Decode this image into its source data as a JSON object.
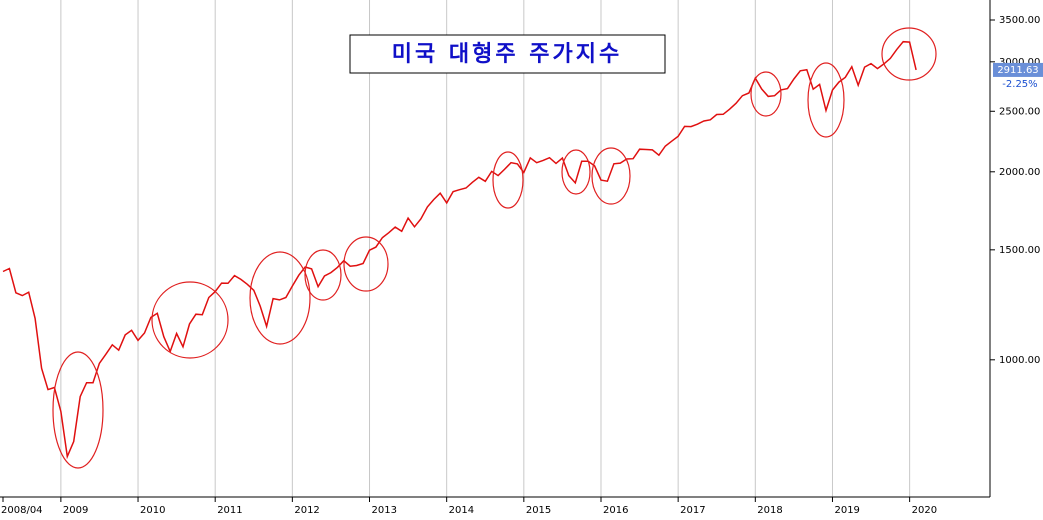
{
  "chart_data": {
    "type": "line",
    "title": "미국 대형주 주가지수",
    "categories": [
      "2008/04",
      null,
      null,
      null,
      null,
      null,
      null,
      null,
      null,
      "2009",
      null,
      null,
      null,
      null,
      null,
      null,
      null,
      null,
      null,
      null,
      null,
      "2010",
      null,
      null,
      null,
      null,
      null,
      null,
      null,
      null,
      null,
      null,
      null,
      "2011",
      null,
      null,
      null,
      null,
      null,
      null,
      null,
      null,
      null,
      null,
      null,
      "2012",
      null,
      null,
      null,
      null,
      null,
      null,
      null,
      null,
      null,
      null,
      null,
      "2013",
      null,
      null,
      null,
      null,
      null,
      null,
      null,
      null,
      null,
      null,
      null,
      "2014",
      null,
      null,
      null,
      null,
      null,
      null,
      null,
      null,
      null,
      null,
      null,
      "2015",
      null,
      null,
      null,
      null,
      null,
      null,
      null,
      null,
      null,
      null,
      null,
      "2016",
      null,
      null,
      null,
      null,
      null,
      null,
      null,
      null,
      null,
      null,
      null,
      "2017",
      null,
      null,
      null,
      null,
      null,
      null,
      null,
      null,
      null,
      null,
      null,
      "2018",
      null,
      null,
      null,
      null,
      null,
      null,
      null,
      null,
      null,
      null,
      null,
      "2019",
      null,
      null,
      null,
      null,
      null,
      null,
      null,
      null,
      null,
      null,
      null,
      "2020",
      null
    ],
    "series": [
      {
        "color": "#e01010",
        "values": [
          1385,
          1400,
          1280,
          1267,
          1283,
          1165,
          969,
          896,
          903,
          826,
          700,
          740,
          873,
          919,
          919,
          987,
          1021,
          1057,
          1036,
          1096,
          1115,
          1074,
          1104,
          1169,
          1187,
          1089,
          1031,
          1102,
          1049,
          1141,
          1183,
          1181,
          1258,
          1286,
          1327,
          1326,
          1364,
          1345,
          1321,
          1292,
          1219,
          1131,
          1253,
          1247,
          1258,
          1312,
          1366,
          1408,
          1398,
          1310,
          1362,
          1379,
          1406,
          1441,
          1412,
          1416,
          1426,
          1498,
          1515,
          1569,
          1598,
          1631,
          1606,
          1686,
          1633,
          1682,
          1757,
          1806,
          1848,
          1783,
          1859,
          1872,
          1884,
          1924,
          1960,
          1931,
          2003,
          1972,
          2018,
          2068,
          2059,
          1995,
          2105,
          2068,
          2086,
          2107,
          2063,
          2104,
          1972,
          1920,
          2079,
          2080,
          2044,
          1940,
          1932,
          2060,
          2065,
          2097,
          2099,
          2174,
          2171,
          2168,
          2126,
          2199,
          2239,
          2279,
          2364,
          2363,
          2384,
          2412,
          2423,
          2470,
          2472,
          2519,
          2575,
          2648,
          2674,
          2824,
          2714,
          2641,
          2648,
          2705,
          2718,
          2816,
          2902,
          2914,
          2712,
          2760,
          2507,
          2704,
          2784,
          2834,
          2946,
          2752,
          2942,
          2980,
          2926,
          2977,
          3038,
          3141,
          3231,
          3226,
          2911.63
        ]
      }
    ],
    "log_scale": true,
    "ylim": [
      603,
      3768
    ],
    "yticks": [
      {
        "value": 1000,
        "label": "1000.00"
      },
      {
        "value": 1500,
        "label": "1500.00"
      },
      {
        "value": 2000,
        "label": "2000.00"
      },
      {
        "value": 2500,
        "label": "2500.00"
      },
      {
        "value": 3000,
        "label": "3000.00"
      },
      {
        "value": 3500,
        "label": "3500.00"
      }
    ],
    "grid": true,
    "last_value": 2911.63,
    "change_label": "-2.25%"
  }
}
